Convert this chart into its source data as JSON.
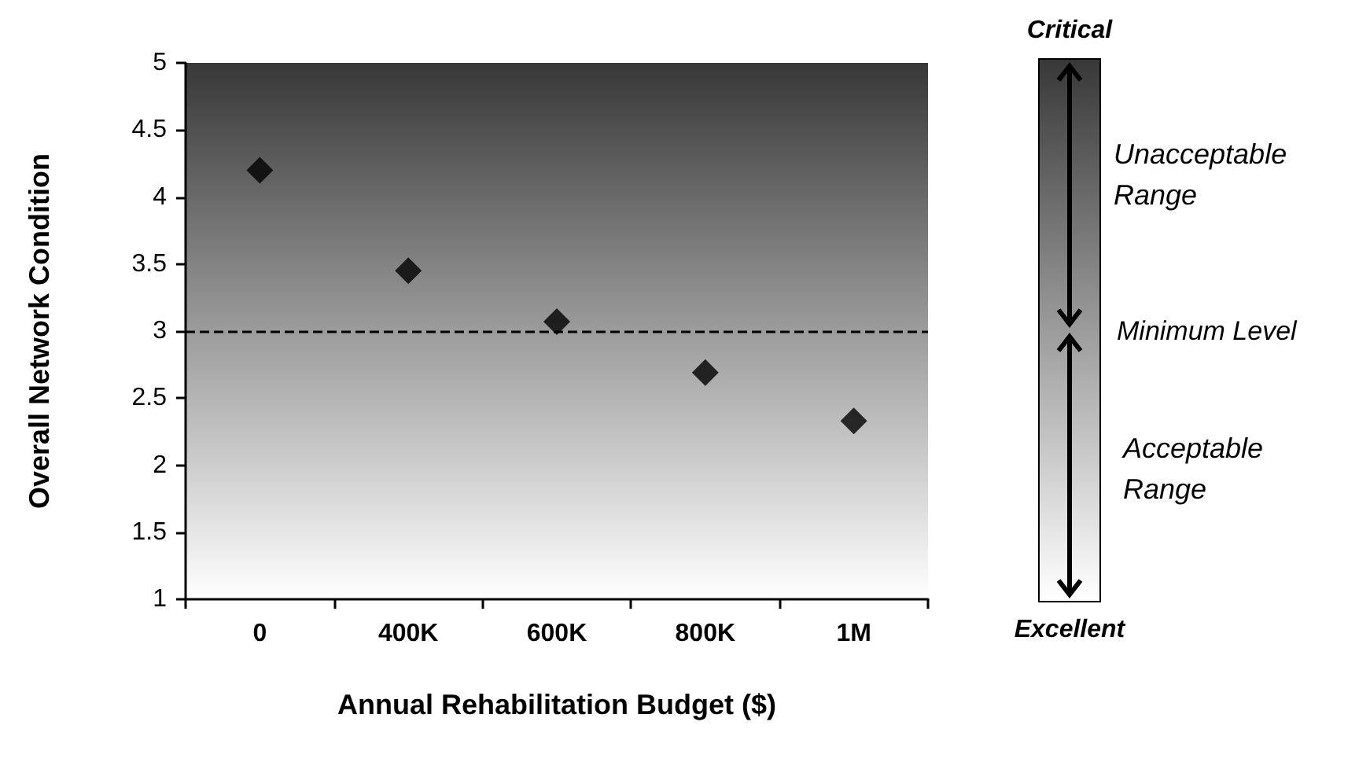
{
  "chart_data": {
    "type": "scatter",
    "xlabel": "Annual Rehabilitation Budget ($)",
    "ylabel": "Overall Network Condition",
    "categories": [
      "0",
      "400K",
      "600K",
      "800K",
      "1M"
    ],
    "values": [
      4.2,
      3.45,
      3.07,
      2.69,
      2.33
    ],
    "color": "#000000",
    "marker": "diamond",
    "ylim": [
      1,
      5
    ],
    "yticks": [
      1,
      1.5,
      2,
      2.5,
      3,
      3.5,
      4,
      4.5,
      5
    ],
    "ref_lines": [
      {
        "axis": "y",
        "value": 3,
        "label": "Minimum Level",
        "line_style": "dashed",
        "color": "#000000"
      }
    ],
    "annotations": [
      "Critical",
      "Unacceptable Range",
      "Acceptable Range",
      "Excellent"
    ],
    "grid": false
  }
}
